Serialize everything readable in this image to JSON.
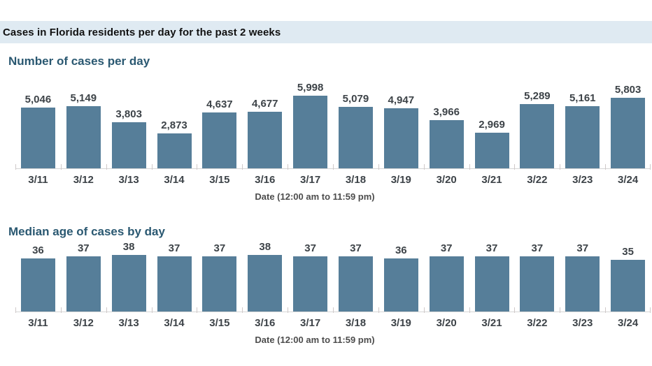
{
  "page": {
    "header": "Cases in Florida residents per day for the past 2 weeks"
  },
  "colors": {
    "header_band_bg": "#dfeaf2",
    "header_text": "#111111",
    "bar": "#567e99",
    "section_title": "#2a5871",
    "value_label": "#3d4348",
    "axis_line": "#d6d6d6"
  },
  "chart_data": [
    {
      "type": "bar",
      "title": "Number of cases per day",
      "categories": [
        "3/11",
        "3/12",
        "3/13",
        "3/14",
        "3/15",
        "3/16",
        "3/17",
        "3/18",
        "3/19",
        "3/20",
        "3/21",
        "3/22",
        "3/23",
        "3/24"
      ],
      "values": [
        5046,
        5149,
        3803,
        2873,
        4637,
        4677,
        5998,
        5079,
        4947,
        3966,
        2969,
        5289,
        5161,
        5803
      ],
      "value_labels": [
        "5,046",
        "5,149",
        "3,803",
        "2,873",
        "4,637",
        "4,677",
        "5,998",
        "5,079",
        "4,947",
        "3,966",
        "2,969",
        "5,289",
        "5,161",
        "5,803"
      ],
      "xlabel": "Date (12:00 am to 11:59 pm)",
      "ylabel": "",
      "ylim": [
        0,
        6000
      ],
      "grid": false,
      "legend": "none",
      "bar_color": "#567e99"
    },
    {
      "type": "bar",
      "title": "Median age of cases by day",
      "categories": [
        "3/11",
        "3/12",
        "3/13",
        "3/14",
        "3/15",
        "3/16",
        "3/17",
        "3/18",
        "3/19",
        "3/20",
        "3/21",
        "3/22",
        "3/23",
        "3/24"
      ],
      "values": [
        36,
        37,
        38,
        37,
        37,
        38,
        37,
        37,
        36,
        37,
        37,
        37,
        37,
        35
      ],
      "value_labels": [
        "36",
        "37",
        "38",
        "37",
        "37",
        "38",
        "37",
        "37",
        "36",
        "37",
        "37",
        "37",
        "37",
        "35"
      ],
      "xlabel": "Date (12:00 am to 11:59 pm)",
      "ylabel": "",
      "ylim": [
        0,
        40
      ],
      "grid": false,
      "legend": "none",
      "bar_color": "#567e99"
    }
  ]
}
